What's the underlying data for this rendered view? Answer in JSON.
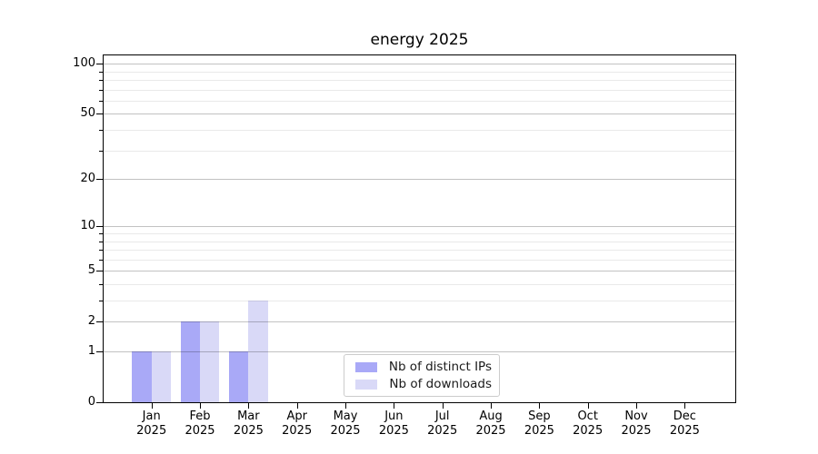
{
  "chart_data": {
    "type": "bar",
    "title": "energy 2025",
    "categories": [
      "Jan 2025",
      "Feb 2025",
      "Mar 2025",
      "Apr 2025",
      "May 2025",
      "Jun 2025",
      "Jul 2025",
      "Aug 2025",
      "Sep 2025",
      "Oct 2025",
      "Nov 2025",
      "Dec 2025"
    ],
    "series": [
      {
        "name": "Nb of distinct IPs",
        "color": "#a9a9f7",
        "values": [
          1,
          2,
          1,
          0,
          0,
          0,
          0,
          0,
          0,
          0,
          0,
          0
        ]
      },
      {
        "name": "Nb of downloads",
        "color": "#d9d9f7",
        "values": [
          1,
          2,
          3,
          0,
          0,
          0,
          0,
          0,
          0,
          0,
          0,
          0
        ]
      }
    ],
    "yscale": "log1p",
    "ylim": [
      0,
      110
    ],
    "yticks_major": [
      0,
      1,
      2,
      5,
      10,
      20,
      50,
      100
    ],
    "yticks_minor": [
      3,
      4,
      6,
      7,
      8,
      9,
      30,
      40,
      60,
      70,
      80,
      90
    ],
    "grid": true,
    "legend_position": "lower center"
  },
  "style": {
    "grid_major_color": "rgba(0,0,0,0.24)",
    "grid_minor_color": "rgba(0,0,0,0.085)",
    "spine_color": "#000000",
    "bar_color_ips": "#a9a9f7",
    "bar_color_downloads": "#d9d9f7"
  }
}
